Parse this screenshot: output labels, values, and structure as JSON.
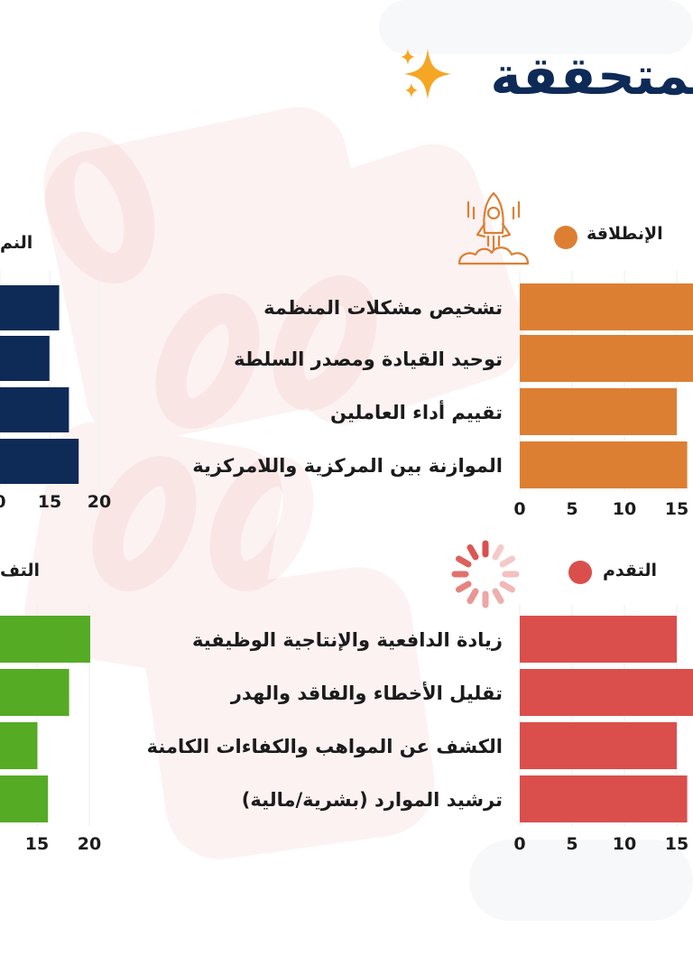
{
  "page": {
    "title": "المتحققة"
  },
  "colors": {
    "navy": "#0e2a57",
    "orange": "#dc7f33",
    "red": "#da4f4c",
    "green": "#55ab24",
    "text": "#1b1b1b"
  },
  "icons": {
    "title": "sparkle-icon",
    "launch": "rocket-icon",
    "progress": "loading-spinner-icon"
  },
  "chart_data": [
    {
      "id": "launch",
      "type": "bar",
      "orientation": "horizontal",
      "title": "الإنطلاقة",
      "color": "#dc7f33",
      "categories": [
        "تشخيص مشكلات المنظمة",
        "توحيد القيادة ومصدر السلطة",
        "تقييم أداء العاملين",
        "الموازنة بين المركزية واللامركزية"
      ],
      "values": [
        20,
        20,
        15,
        16
      ],
      "x_ticks": [
        "0",
        "5",
        "10",
        "15"
      ],
      "xlim": [
        0,
        20
      ]
    },
    {
      "id": "growth",
      "type": "bar",
      "orientation": "horizontal",
      "title": "النم",
      "color": "#0e2a57",
      "categories": [
        "",
        "",
        "",
        ""
      ],
      "values": [
        17,
        16,
        18,
        19
      ],
      "x_ticks": [
        "0",
        "15",
        "20"
      ],
      "xlim": [
        0,
        20
      ]
    },
    {
      "id": "progress",
      "type": "bar",
      "orientation": "horizontal",
      "title": "التقدم",
      "color": "#da4f4c",
      "categories": [
        "زيادة الدافعية والإنتاجية الوظيفية",
        "تقليل الأخطاء والفاقد والهدر",
        "الكشف عن المواهب والكفاءات الكامنة",
        "ترشيد الموارد (بشرية/مالية)"
      ],
      "values": [
        15,
        20,
        15,
        16
      ],
      "x_ticks": [
        "0",
        "5",
        "10",
        "15"
      ],
      "xlim": [
        0,
        20
      ]
    },
    {
      "id": "excellence",
      "type": "bar",
      "orientation": "horizontal",
      "title": "التف",
      "color": "#55ab24",
      "categories": [
        "",
        "",
        "",
        ""
      ],
      "values": [
        20,
        18,
        15,
        16
      ],
      "x_ticks": [
        "15",
        "20"
      ],
      "xlim": [
        0,
        20
      ]
    }
  ]
}
